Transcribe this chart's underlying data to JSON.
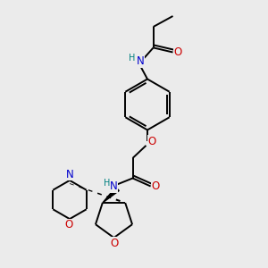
{
  "background_color": "#ebebeb",
  "atom_colors": {
    "C": "#000000",
    "N": "#0000cd",
    "O": "#cc0000",
    "H": "#008080"
  },
  "bond_color": "#000000",
  "lw": 1.4,
  "fs": 8.5,
  "fs_small": 7.0,
  "xlim": [
    0,
    10
  ],
  "ylim": [
    0,
    10
  ]
}
